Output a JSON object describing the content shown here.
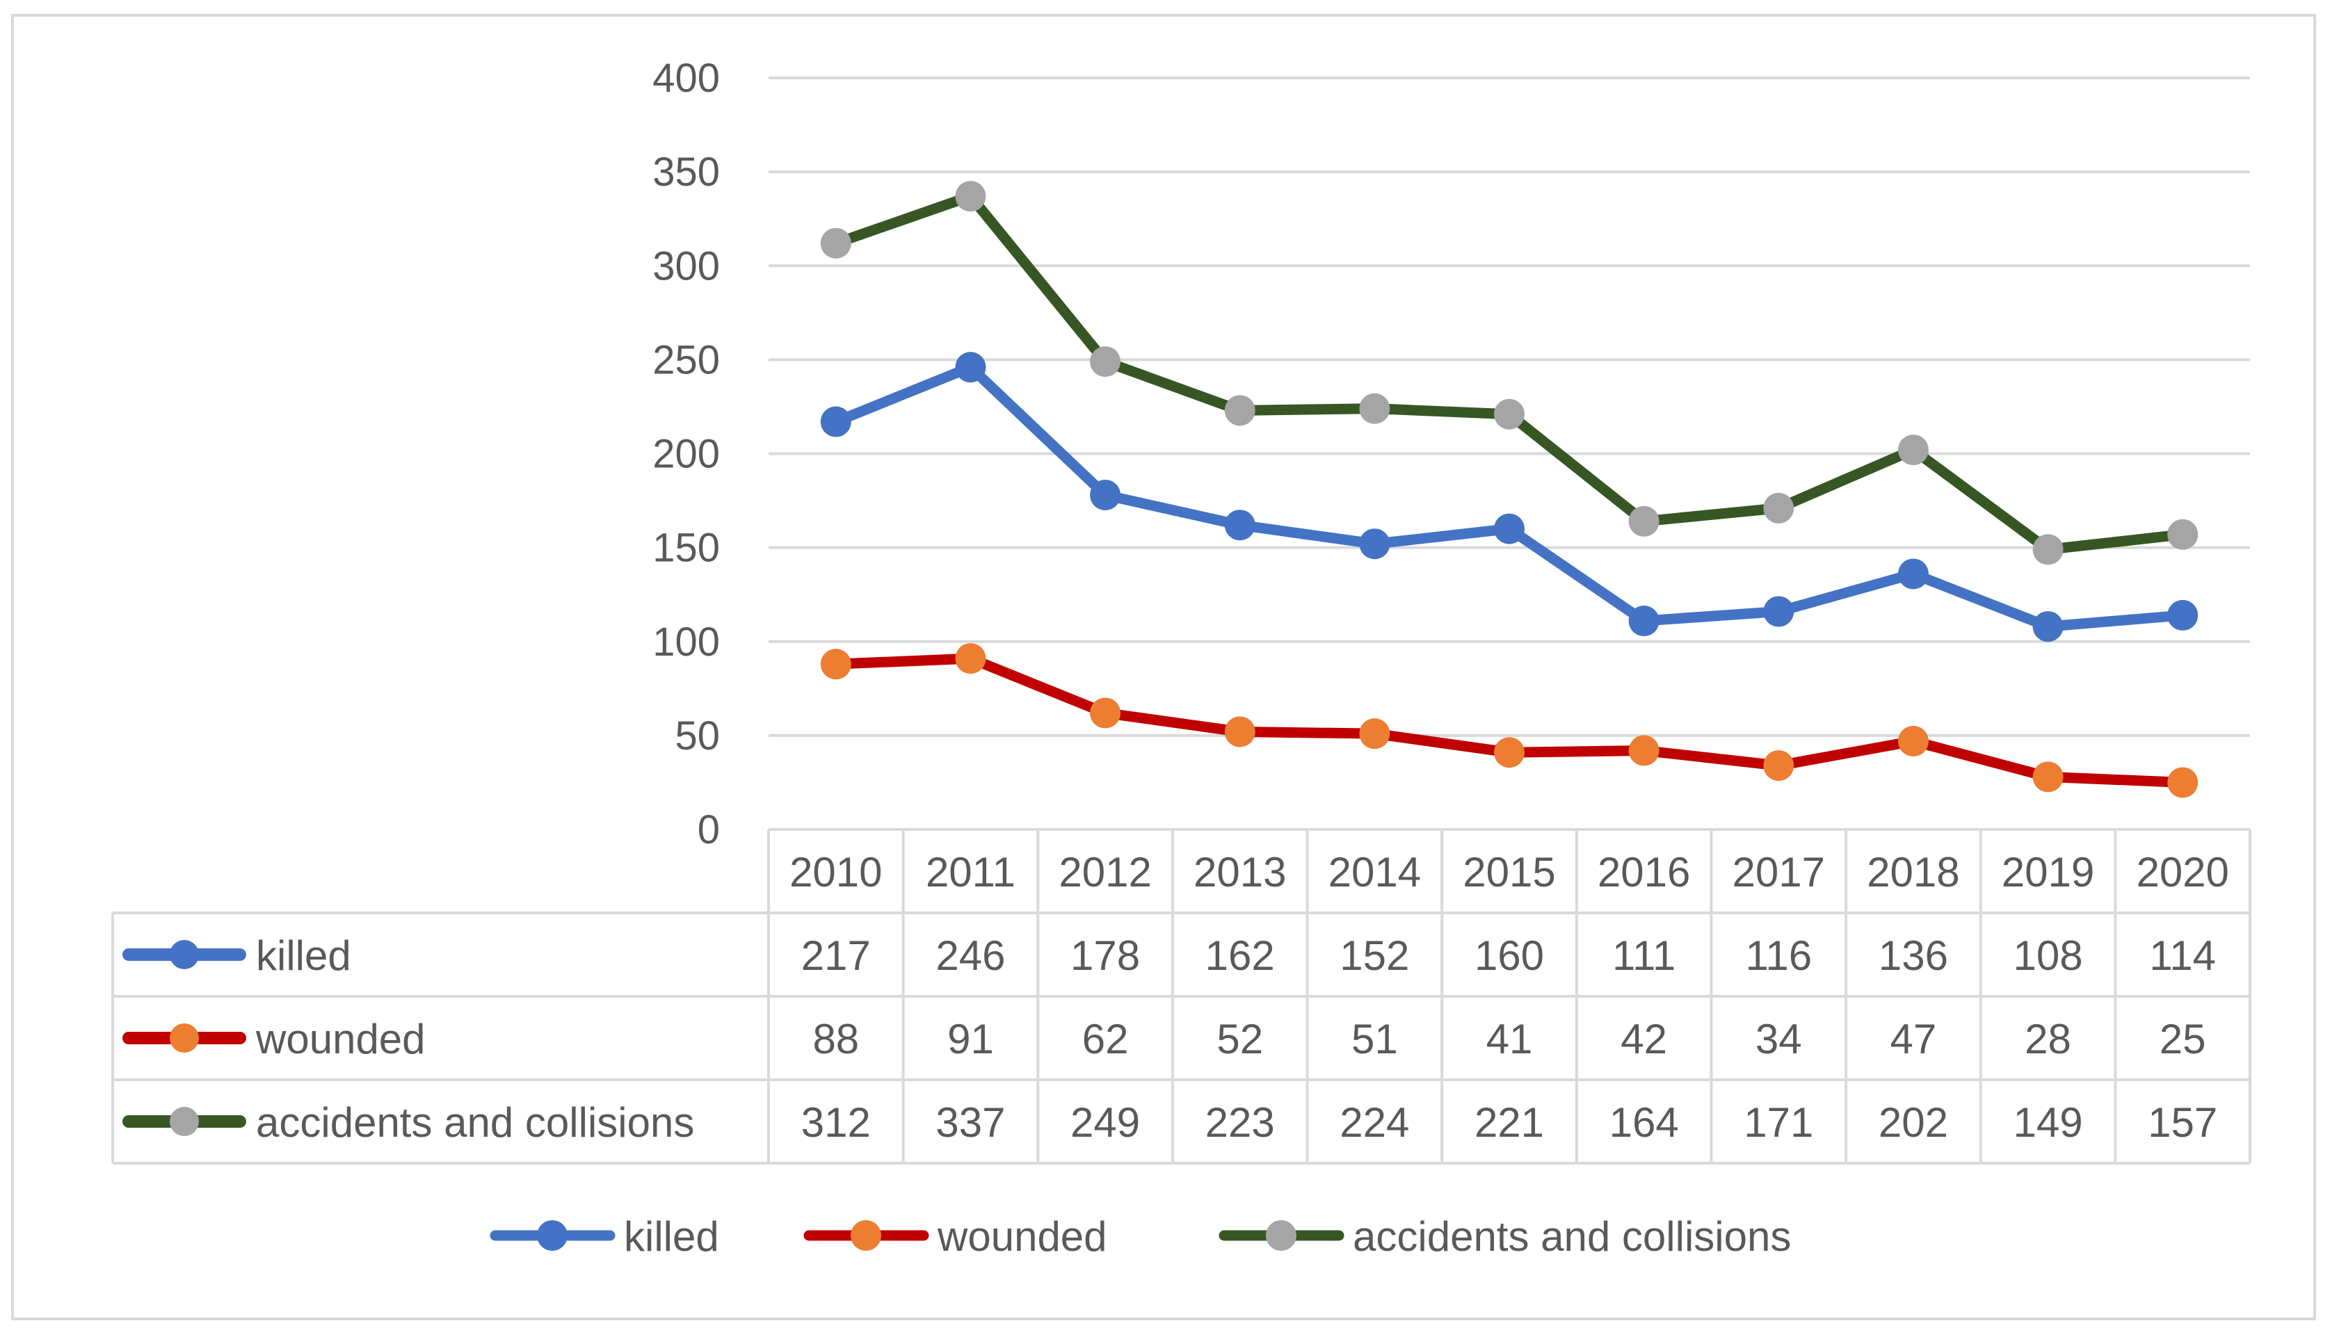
{
  "chart_data": {
    "type": "line",
    "title": "",
    "xlabel": "",
    "ylabel": "",
    "ylim": [
      0,
      400
    ],
    "yticks": [
      0,
      50,
      100,
      150,
      200,
      250,
      300,
      350,
      400
    ],
    "grid": true,
    "legend_position": "bottom",
    "data_table": true,
    "categories": [
      "2010",
      "2011",
      "2012",
      "2013",
      "2014",
      "2015",
      "2016",
      "2017",
      "2018",
      "2019",
      "2020"
    ],
    "series": [
      {
        "name": "killed",
        "values": [
          217,
          246,
          178,
          162,
          152,
          160,
          111,
          116,
          136,
          108,
          114
        ],
        "line_color": "#4472C4",
        "marker_color": "#4472C4"
      },
      {
        "name": "wounded",
        "values": [
          88,
          91,
          62,
          52,
          51,
          41,
          42,
          34,
          47,
          28,
          25
        ],
        "line_color": "#C00000",
        "marker_color": "#ED7D31"
      },
      {
        "name": "accidents and collisions",
        "values": [
          312,
          337,
          249,
          223,
          224,
          221,
          164,
          171,
          202,
          149,
          157
        ],
        "line_color": "#375623",
        "marker_color": "#A5A5A5"
      }
    ]
  },
  "colors": {
    "grid": "#D9D9D9",
    "text": "#595959",
    "border": "#D9D9D9"
  }
}
